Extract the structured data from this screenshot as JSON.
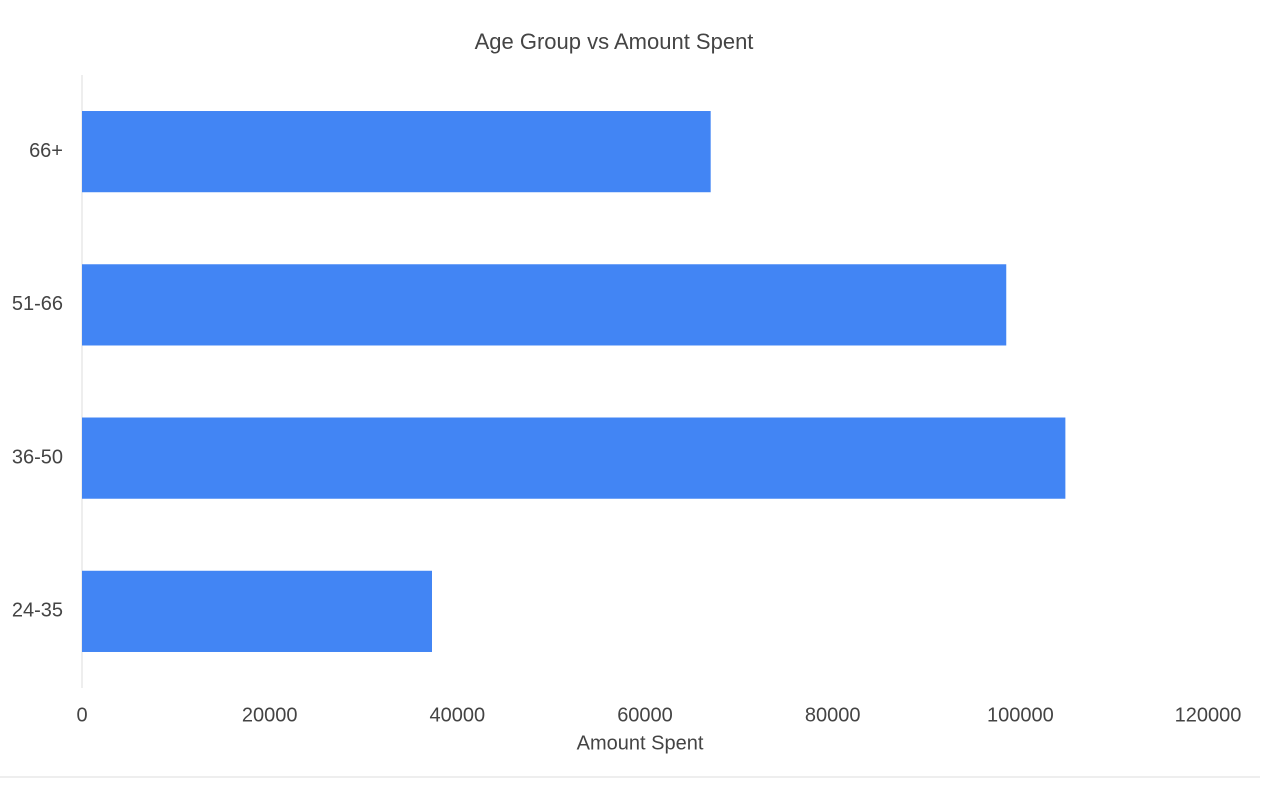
{
  "chart_data": {
    "type": "barh",
    "title": "Age Group vs Amount Spent",
    "x_label": "Amount Spent",
    "categories": [
      "24-35",
      "36-50",
      "51-66",
      "66+"
    ],
    "values": [
      37300,
      104800,
      98500,
      67000
    ],
    "color": "#4285f4",
    "xlim": [
      0,
      120000
    ],
    "xticks": [
      0,
      20000,
      40000,
      60000,
      80000,
      100000,
      120000
    ],
    "grid": false
  }
}
